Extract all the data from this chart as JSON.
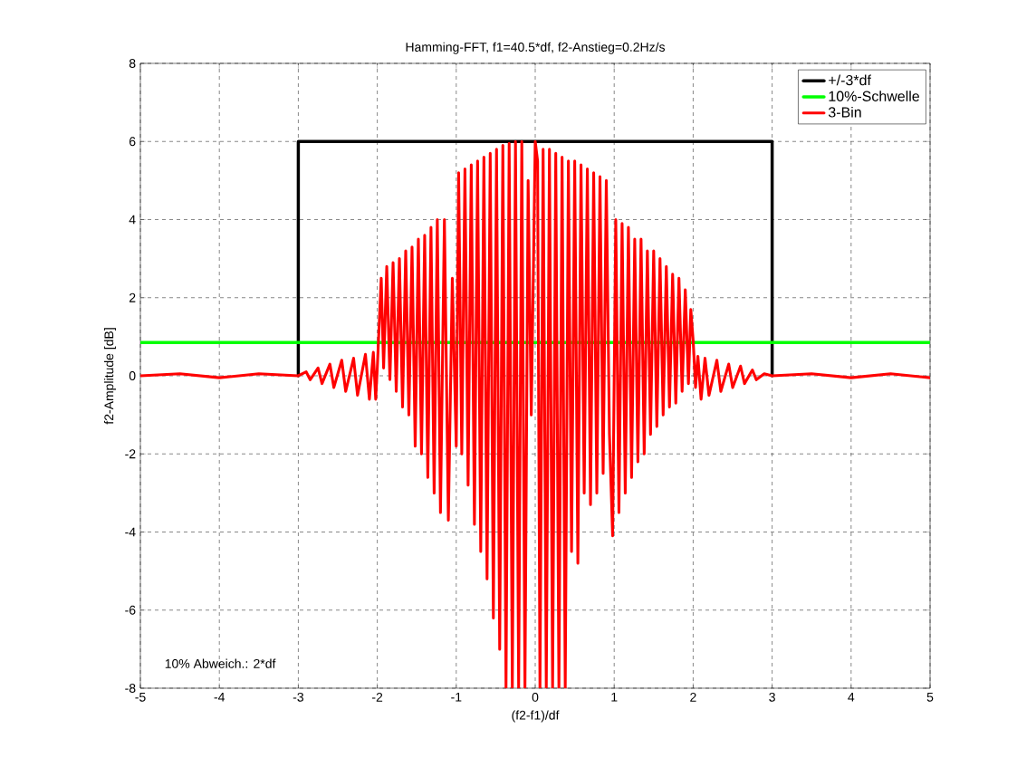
{
  "chart_data": {
    "type": "line",
    "title": "Hamming-FFT,  f1=40.5*df,  f2-Anstieg=0.2Hz/s",
    "xlabel": "(f2-f1)/df",
    "ylabel": "f2-Amplitude [dB]",
    "xlim": [
      -5,
      5
    ],
    "ylim": [
      -8,
      8
    ],
    "xticks": [
      -5,
      -4,
      -3,
      -2,
      -1,
      0,
      1,
      2,
      3,
      4,
      5
    ],
    "yticks": [
      -8,
      -6,
      -4,
      -2,
      0,
      2,
      4,
      6,
      8
    ],
    "grid": true,
    "legend": "top right",
    "annotations": [
      "10% Abweich.:  2*df"
    ],
    "series": [
      {
        "name": "+/-3*df",
        "color": "#000000",
        "x": [
          -3,
          -3,
          3,
          3
        ],
        "values": [
          0,
          6,
          6,
          0
        ]
      },
      {
        "name": "10%-Schwelle",
        "color": "#00ff00",
        "x": [
          -5,
          5
        ],
        "values": [
          0.85,
          0.85
        ]
      },
      {
        "name": "3-Bin",
        "color": "#ff0000",
        "x": [
          -5,
          -4.5,
          -4,
          -3.5,
          -3,
          -2.9,
          -2.85,
          -2.75,
          -2.7,
          -2.6,
          -2.55,
          -2.45,
          -2.4,
          -2.3,
          -2.25,
          -2.15,
          -2.1,
          -2.05,
          -2.02,
          -2.0,
          -1.95,
          -1.92,
          -1.88,
          -1.84,
          -1.8,
          -1.76,
          -1.72,
          -1.68,
          -1.64,
          -1.6,
          -1.56,
          -1.52,
          -1.48,
          -1.44,
          -1.4,
          -1.36,
          -1.32,
          -1.28,
          -1.24,
          -1.2,
          -1.15,
          -1.1,
          -1.05,
          -1.0,
          -0.97,
          -0.93,
          -0.89,
          -0.85,
          -0.81,
          -0.77,
          -0.73,
          -0.69,
          -0.65,
          -0.61,
          -0.57,
          -0.53,
          -0.49,
          -0.45,
          -0.41,
          -0.37,
          -0.33,
          -0.29,
          -0.25,
          -0.21,
          -0.17,
          -0.13,
          -0.09,
          -0.05,
          0,
          0.03,
          0.06,
          0.1,
          0.14,
          0.18,
          0.22,
          0.26,
          0.3,
          0.34,
          0.38,
          0.42,
          0.46,
          0.5,
          0.54,
          0.58,
          0.62,
          0.66,
          0.7,
          0.74,
          0.78,
          0.82,
          0.86,
          0.9,
          0.94,
          0.98,
          1.02,
          1.06,
          1.1,
          1.14,
          1.18,
          1.22,
          1.26,
          1.3,
          1.34,
          1.38,
          1.42,
          1.46,
          1.5,
          1.54,
          1.58,
          1.62,
          1.66,
          1.7,
          1.74,
          1.78,
          1.82,
          1.86,
          1.9,
          1.94,
          1.97,
          2.0,
          2.03,
          2.06,
          2.1,
          2.15,
          2.2,
          2.3,
          2.35,
          2.45,
          2.5,
          2.6,
          2.65,
          2.75,
          2.8,
          2.9,
          3.0,
          3.5,
          4,
          4.5,
          5
        ],
        "values": [
          0,
          0.05,
          -0.05,
          0.05,
          0,
          0.1,
          -0.1,
          0.2,
          -0.2,
          0.3,
          -0.3,
          0.4,
          -0.4,
          0.45,
          -0.5,
          0.55,
          -0.6,
          0.6,
          -0.6,
          0.2,
          2.5,
          0.2,
          2.8,
          -0.1,
          2.9,
          -0.4,
          3.0,
          -0.8,
          3.2,
          -1.0,
          3.3,
          -1.8,
          3.5,
          -2.0,
          3.6,
          -2.6,
          3.8,
          -3.0,
          4.0,
          -3.5,
          4.0,
          -3.7,
          2.5,
          -1.8,
          5.2,
          -2.0,
          5.3,
          -2.8,
          5.4,
          -3.8,
          5.5,
          -4.5,
          5.6,
          -5.2,
          5.7,
          -6.2,
          5.8,
          -7.0,
          5.9,
          -8,
          5.95,
          -8,
          6.0,
          -8,
          6.0,
          -8,
          5.0,
          -1,
          6.0,
          5.5,
          -8,
          5.8,
          -8,
          5.8,
          -8,
          5.7,
          -8,
          5.6,
          -8,
          5.5,
          -4.5,
          5.5,
          -4.8,
          5.4,
          -3.0,
          5.3,
          -3.3,
          5.2,
          -3.0,
          5.1,
          -2.5,
          5.0,
          -1.5,
          -4.1,
          4.0,
          -3.5,
          3.9,
          -3.0,
          3.8,
          -2.6,
          3.5,
          -2.2,
          3.5,
          -2.0,
          3.2,
          -1.5,
          3.2,
          -1.3,
          3.0,
          -1.0,
          2.8,
          -0.8,
          2.6,
          -0.7,
          2.5,
          -0.4,
          2.2,
          -0.2,
          1.7,
          0.9,
          -0.3,
          0.5,
          -0.6,
          0.45,
          -0.5,
          0.4,
          -0.4,
          0.3,
          -0.3,
          0.25,
          -0.2,
          0.15,
          -0.1,
          0.05,
          0,
          0.05,
          -0.05,
          0.05,
          -0.05
        ]
      }
    ]
  }
}
